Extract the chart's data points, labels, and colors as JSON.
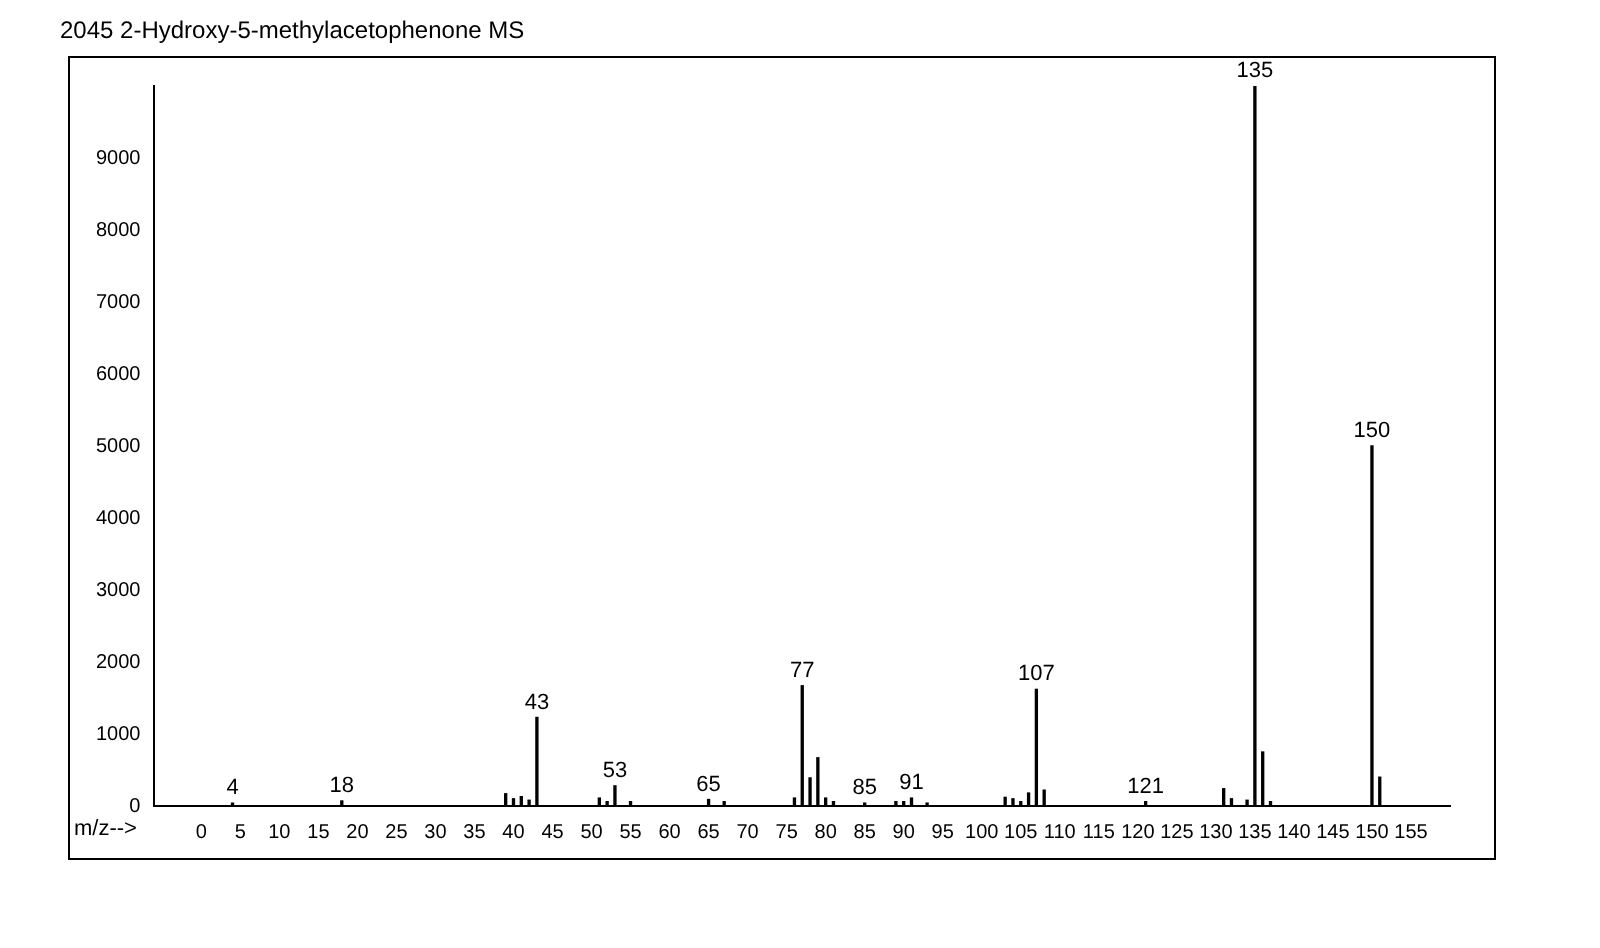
{
  "chart_data": {
    "type": "bar",
    "title": "2045 2-Hydroxy-5-methylacetophenone MS",
    "xlabel": "m/z-->",
    "x": [
      4,
      18,
      39,
      40,
      41,
      42,
      43,
      51,
      52,
      53,
      55,
      65,
      67,
      76,
      77,
      78,
      79,
      80,
      81,
      85,
      89,
      90,
      91,
      93,
      103,
      104,
      105,
      106,
      107,
      108,
      121,
      131,
      132,
      134,
      135,
      136,
      137,
      150,
      151
    ],
    "values": [
      40,
      70,
      170,
      100,
      130,
      80,
      1230,
      110,
      60,
      280,
      60,
      90,
      60,
      110,
      1670,
      390,
      670,
      110,
      60,
      40,
      60,
      60,
      110,
      40,
      120,
      100,
      60,
      180,
      1620,
      220,
      60,
      240,
      100,
      80,
      10000,
      750,
      60,
      5000,
      400
    ],
    "color": "#000000",
    "xlim": [
      -6,
      160
    ],
    "xticks": [
      0,
      5,
      10,
      15,
      20,
      25,
      30,
      35,
      40,
      45,
      50,
      55,
      60,
      65,
      70,
      75,
      80,
      85,
      90,
      95,
      100,
      105,
      110,
      115,
      120,
      125,
      130,
      135,
      140,
      145,
      150,
      155
    ],
    "ylim": [
      0,
      10000
    ],
    "yticks": [
      0,
      1000,
      2000,
      3000,
      4000,
      5000,
      6000,
      7000,
      8000,
      9000
    ],
    "annotations": [
      {
        "text": "4",
        "x": 4,
        "y": 40
      },
      {
        "text": "18",
        "x": 18,
        "y": 70
      },
      {
        "text": "43",
        "x": 43,
        "y": 1230
      },
      {
        "text": "53",
        "x": 53,
        "y": 280
      },
      {
        "text": "65",
        "x": 65,
        "y": 90
      },
      {
        "text": "77",
        "x": 77,
        "y": 1670
      },
      {
        "text": "85",
        "x": 85,
        "y": 40
      },
      {
        "text": "91",
        "x": 91,
        "y": 110
      },
      {
        "text": "107",
        "x": 107,
        "y": 1620
      },
      {
        "text": "121",
        "x": 121,
        "y": 60
      },
      {
        "text": "135",
        "x": 135,
        "y": 10000
      },
      {
        "text": "150",
        "x": 150,
        "y": 5000
      }
    ],
    "grid": false,
    "legend": false
  }
}
